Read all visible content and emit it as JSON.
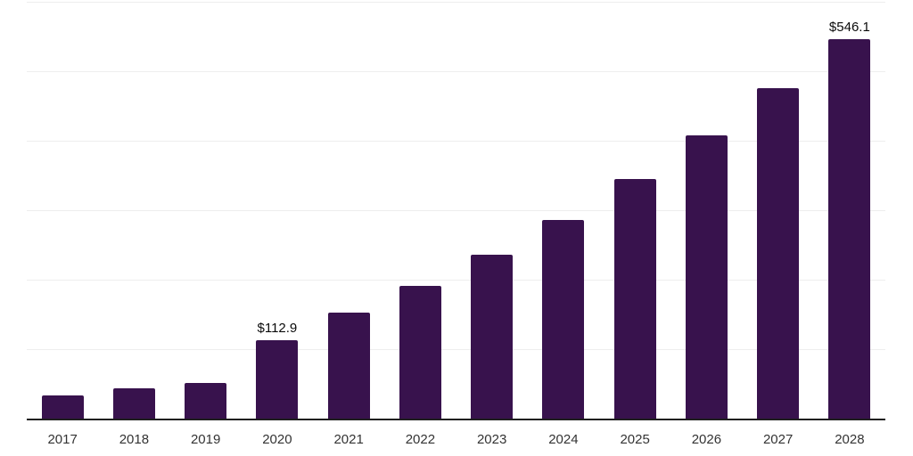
{
  "chart_data": {
    "type": "bar",
    "title": "",
    "xlabel": "",
    "ylabel": "",
    "categories": [
      "2017",
      "2018",
      "2019",
      "2020",
      "2021",
      "2022",
      "2023",
      "2024",
      "2025",
      "2026",
      "2027",
      "2028"
    ],
    "values": [
      33.0,
      44.0,
      51.0,
      112.9,
      152.6,
      191.0,
      236.0,
      286.0,
      345.0,
      408.0,
      475.5,
      546.1
    ],
    "data_labels": {
      "2020": "$112.9",
      "2028": "$546.1"
    },
    "ylim": [
      0,
      600
    ],
    "gridline_step": 100,
    "grid": true,
    "legend": false,
    "y_tick_labels_shown": false,
    "colors": {
      "bar": "#38124d",
      "gridline": "#eeeeee",
      "axis_line": "#1f1f1f",
      "x_label": "#333333",
      "value_label": "#0a0a0a",
      "background": "#ffffff"
    }
  }
}
